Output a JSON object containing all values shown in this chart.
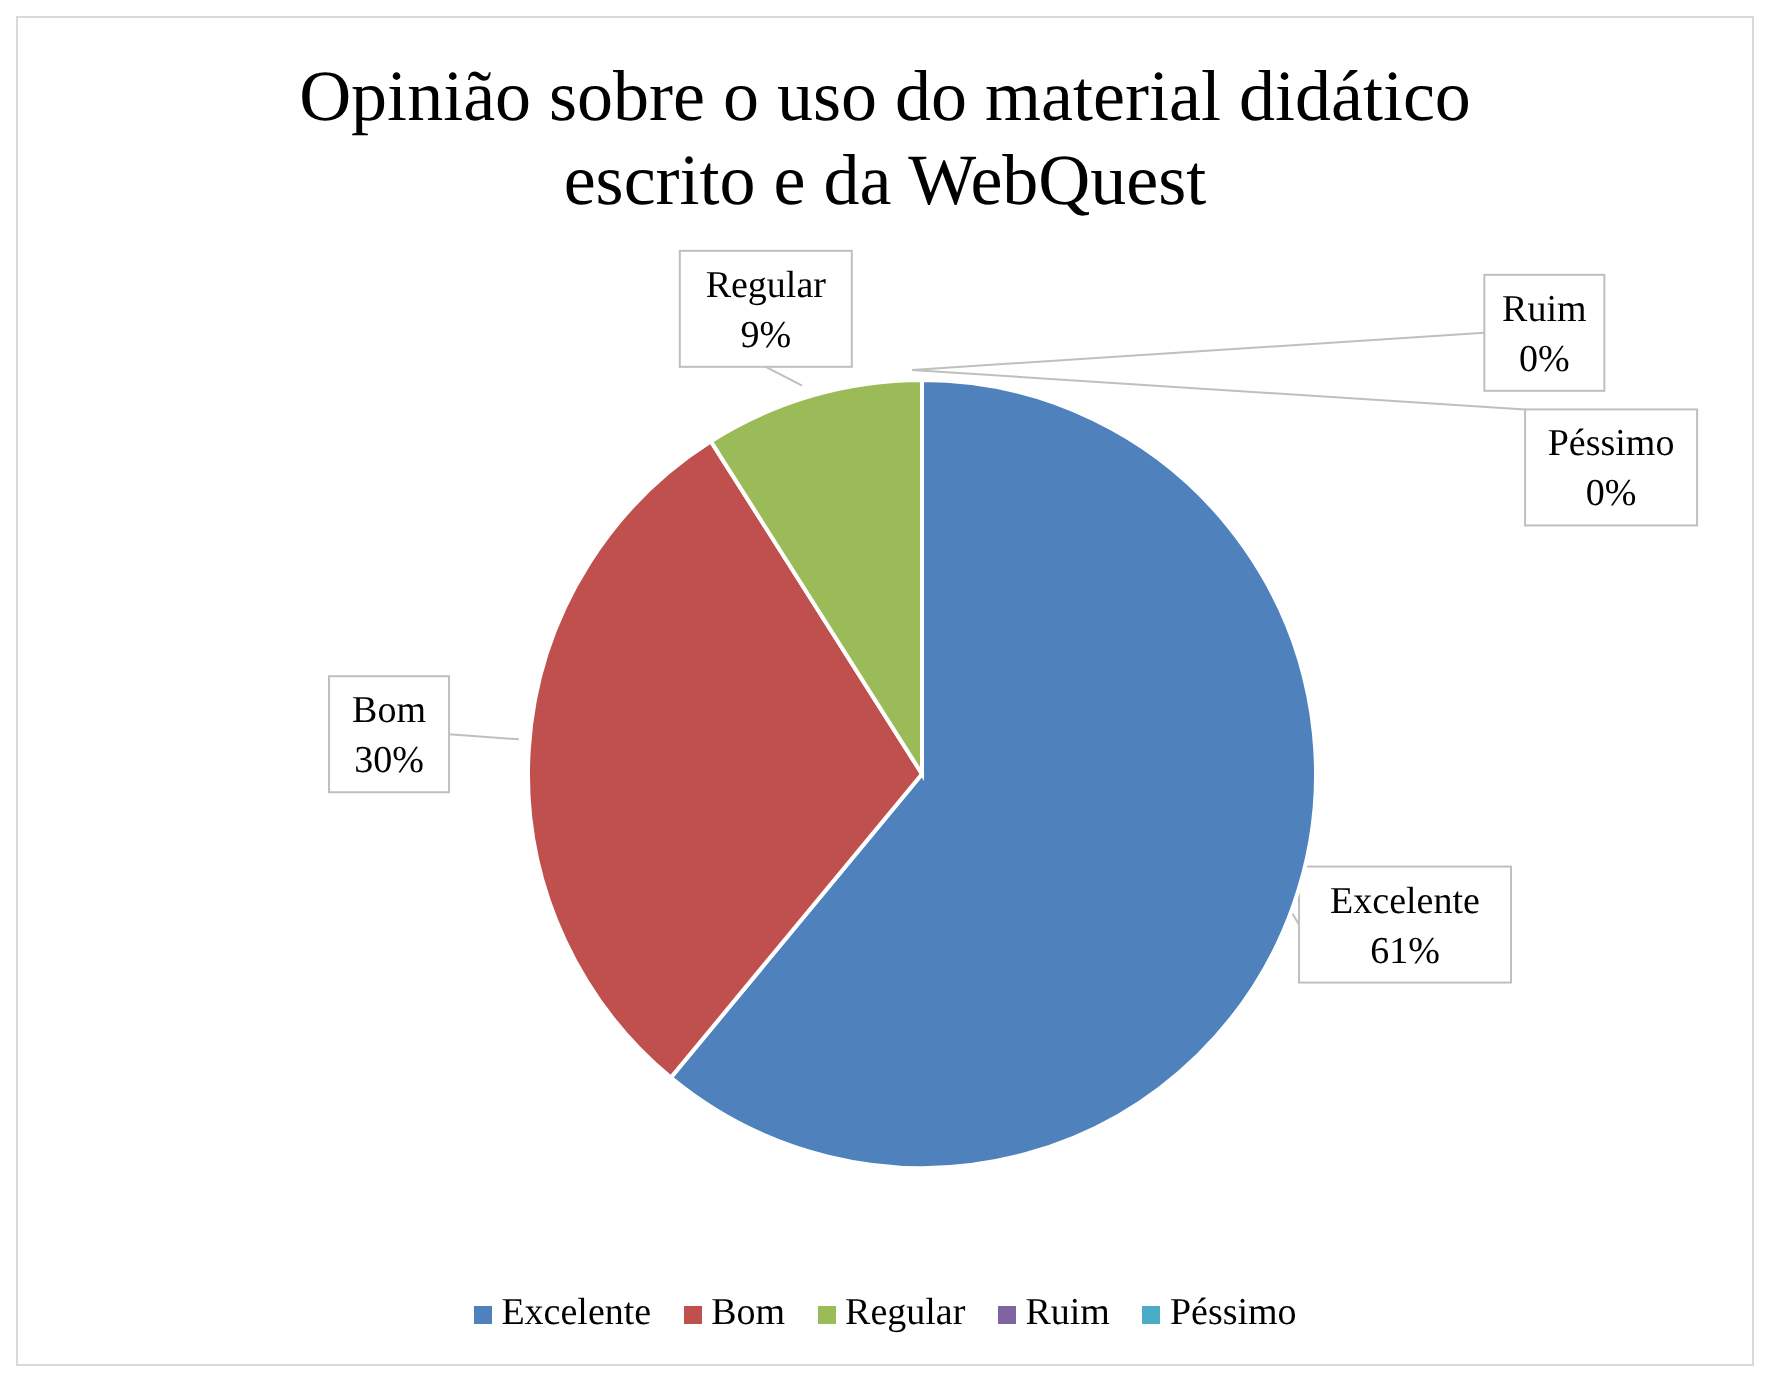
{
  "chart_data": {
    "type": "pie",
    "title": "Opinião sobre o uso do material didático escrito e da WebQuest",
    "categories": [
      "Excelente",
      "Bom",
      "Regular",
      "Ruim",
      "Péssimo"
    ],
    "values": [
      61,
      30,
      9,
      0,
      0
    ],
    "colors": [
      "#4f81bd",
      "#c0504d",
      "#9bbb59",
      "#8064a2",
      "#4bacc6"
    ],
    "value_labels": [
      "61%",
      "30%",
      "9%",
      "0%",
      "0%"
    ],
    "legend": "bottom"
  }
}
